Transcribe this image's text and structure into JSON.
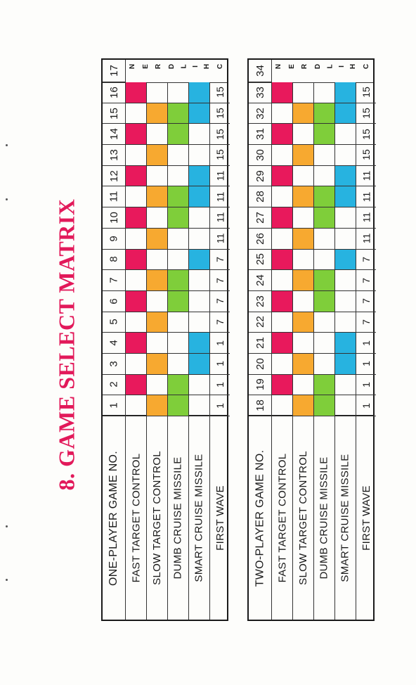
{
  "title": "8. GAME SELECT MATRIX",
  "children_label": [
    "C",
    "H",
    "I",
    "L",
    "D",
    "R",
    "E",
    "N"
  ],
  "colors": {
    "fast": "#e8195c",
    "slow": "#f7a930",
    "dumb": "#7fce3a",
    "smart": "#27b3e0"
  },
  "tables": [
    {
      "header": "ONE-PLAYER GAME NO.",
      "game_numbers": [
        "1",
        "2",
        "3",
        "4",
        "5",
        "6",
        "7",
        "8",
        "9",
        "10",
        "11",
        "12",
        "13",
        "14",
        "15",
        "16",
        "17"
      ],
      "rows": [
        {
          "label": "FAST TARGET CONTROL",
          "color": "fast",
          "on": [
            0,
            1,
            0,
            1,
            0,
            1,
            0,
            1,
            0,
            1,
            0,
            1,
            0,
            1,
            0,
            1
          ]
        },
        {
          "label": "SLOW TARGET CONTROL",
          "color": "slow",
          "on": [
            1,
            0,
            1,
            0,
            1,
            0,
            1,
            0,
            1,
            0,
            1,
            0,
            1,
            0,
            1,
            0
          ]
        },
        {
          "label": "DUMB CRUISE MISSILE",
          "color": "dumb",
          "on": [
            1,
            1,
            0,
            0,
            0,
            1,
            1,
            0,
            0,
            1,
            1,
            0,
            0,
            1,
            1,
            0
          ]
        },
        {
          "label": "SMART  CRUISE  MISSILE",
          "color": "smart",
          "on": [
            0,
            0,
            1,
            1,
            0,
            0,
            0,
            1,
            0,
            0,
            1,
            1,
            0,
            0,
            1,
            1
          ]
        }
      ],
      "first_wave_label": "FIRST WAVE",
      "first_wave": [
        "1",
        "1",
        "1",
        "1",
        "7",
        "7",
        "7",
        "7",
        "11",
        "11",
        "11",
        "11",
        "15",
        "15",
        "15",
        "15"
      ]
    },
    {
      "header": "TWO-PLAYER GAME NO.",
      "game_numbers": [
        "18",
        "19",
        "20",
        "21",
        "22",
        "23",
        "24",
        "25",
        "26",
        "27",
        "28",
        "29",
        "30",
        "31",
        "32",
        "33",
        "34"
      ],
      "rows": [
        {
          "label": "FAST TARGET CONTROL",
          "color": "fast",
          "on": [
            0,
            1,
            0,
            1,
            0,
            1,
            0,
            1,
            0,
            1,
            0,
            1,
            0,
            1,
            0,
            1
          ]
        },
        {
          "label": "SLOW TARGET CONTROL",
          "color": "slow",
          "on": [
            1,
            0,
            1,
            0,
            1,
            0,
            1,
            0,
            1,
            0,
            1,
            0,
            1,
            0,
            1,
            0
          ]
        },
        {
          "label": "DUMB CRUISE MISSILE",
          "color": "dumb",
          "on": [
            1,
            1,
            0,
            0,
            0,
            1,
            1,
            0,
            0,
            1,
            1,
            0,
            0,
            1,
            1,
            0
          ]
        },
        {
          "label": "SMART  CRUISE MISSILE",
          "color": "smart",
          "on": [
            0,
            0,
            1,
            1,
            0,
            0,
            0,
            1,
            0,
            0,
            1,
            1,
            0,
            0,
            1,
            1
          ]
        }
      ],
      "first_wave_label": "FIRST WAVE",
      "first_wave": [
        "1",
        "1",
        "1",
        "1",
        "7",
        "7",
        "7",
        "7",
        "11",
        "11",
        "11",
        "11",
        "15",
        "15",
        "15",
        "15"
      ]
    }
  ]
}
